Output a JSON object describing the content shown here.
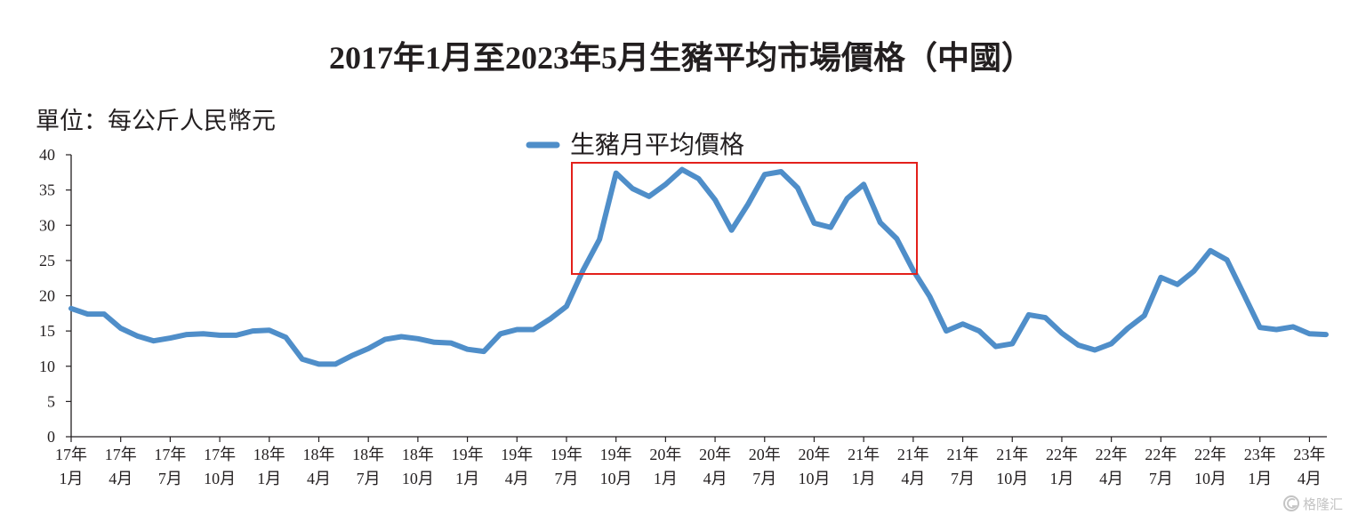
{
  "colors": {
    "line": "#4f8ec9",
    "highlight": "#e3201b"
  },
  "watermark": {
    "text": "格隆汇",
    "icon": "gelonghui-logo-icon"
  },
  "chart_data": {
    "type": "line",
    "title": "2017年1月至2023年5月生豬平均市場價格（中國）",
    "ylabel": "單位：每公斤人民幣元",
    "ylim": [
      0,
      40
    ],
    "yticks": [
      0,
      5,
      10,
      15,
      20,
      25,
      30,
      35,
      40
    ],
    "grid": false,
    "legend_placement": "top-center",
    "x": [
      "2017-01",
      "2017-02",
      "2017-03",
      "2017-04",
      "2017-05",
      "2017-06",
      "2017-07",
      "2017-08",
      "2017-09",
      "2017-10",
      "2017-11",
      "2017-12",
      "2018-01",
      "2018-02",
      "2018-03",
      "2018-04",
      "2018-05",
      "2018-06",
      "2018-07",
      "2018-08",
      "2018-09",
      "2018-10",
      "2018-11",
      "2018-12",
      "2019-01",
      "2019-02",
      "2019-03",
      "2019-04",
      "2019-05",
      "2019-06",
      "2019-07",
      "2019-08",
      "2019-09",
      "2019-10",
      "2019-11",
      "2019-12",
      "2020-01",
      "2020-02",
      "2020-03",
      "2020-04",
      "2020-05",
      "2020-06",
      "2020-07",
      "2020-08",
      "2020-09",
      "2020-10",
      "2020-11",
      "2020-12",
      "2021-01",
      "2021-02",
      "2021-03",
      "2021-04",
      "2021-05",
      "2021-06",
      "2021-07",
      "2021-08",
      "2021-09",
      "2021-10",
      "2021-11",
      "2021-12",
      "2022-01",
      "2022-02",
      "2022-03",
      "2022-04",
      "2022-05",
      "2022-06",
      "2022-07",
      "2022-08",
      "2022-09",
      "2022-10",
      "2022-11",
      "2022-12",
      "2023-01",
      "2023-02",
      "2023-03",
      "2023-04",
      "2023-05"
    ],
    "series": [
      {
        "name": "生豬月平均價格",
        "values": [
          18.2,
          17.4,
          17.4,
          15.4,
          14.3,
          13.6,
          14.0,
          14.5,
          14.6,
          14.4,
          14.4,
          15.0,
          15.1,
          14.1,
          11.0,
          10.3,
          10.3,
          11.5,
          12.5,
          13.8,
          14.2,
          13.9,
          13.4,
          13.3,
          12.4,
          12.1,
          14.6,
          15.2,
          15.2,
          16.7,
          18.5,
          23.6,
          28.0,
          37.4,
          35.2,
          34.1,
          35.8,
          37.9,
          36.6,
          33.6,
          29.3,
          33.0,
          37.2,
          37.6,
          35.3,
          30.3,
          29.7,
          33.8,
          35.8,
          30.4,
          28.1,
          23.6,
          19.9,
          15.0,
          16.0,
          15.0,
          12.8,
          13.2,
          17.3,
          16.9,
          14.7,
          13.0,
          12.3,
          13.2,
          15.4,
          17.2,
          22.6,
          21.6,
          23.5,
          26.4,
          25.1,
          20.3,
          15.5,
          15.2,
          15.6,
          14.6,
          14.5
        ]
      }
    ],
    "x_ticks": [
      {
        "x": "2017-01",
        "label": [
          "17年",
          "1月"
        ]
      },
      {
        "x": "2017-04",
        "label": [
          "17年",
          "4月"
        ]
      },
      {
        "x": "2017-07",
        "label": [
          "17年",
          "7月"
        ]
      },
      {
        "x": "2017-10",
        "label": [
          "17年",
          "10月"
        ]
      },
      {
        "x": "2018-01",
        "label": [
          "18年",
          "1月"
        ]
      },
      {
        "x": "2018-04",
        "label": [
          "18年",
          "4月"
        ]
      },
      {
        "x": "2018-07",
        "label": [
          "18年",
          "7月"
        ]
      },
      {
        "x": "2018-10",
        "label": [
          "18年",
          "10月"
        ]
      },
      {
        "x": "2019-01",
        "label": [
          "19年",
          "1月"
        ]
      },
      {
        "x": "2019-04",
        "label": [
          "19年",
          "4月"
        ]
      },
      {
        "x": "2019-07",
        "label": [
          "19年",
          "7月"
        ]
      },
      {
        "x": "2019-10",
        "label": [
          "19年",
          "10月"
        ]
      },
      {
        "x": "2020-01",
        "label": [
          "20年",
          "1月"
        ]
      },
      {
        "x": "2020-04",
        "label": [
          "20年",
          "4月"
        ]
      },
      {
        "x": "2020-07",
        "label": [
          "20年",
          "7月"
        ]
      },
      {
        "x": "2020-10",
        "label": [
          "20年",
          "10月"
        ]
      },
      {
        "x": "2021-01",
        "label": [
          "21年",
          "1月"
        ]
      },
      {
        "x": "2021-04",
        "label": [
          "21年",
          "4月"
        ]
      },
      {
        "x": "2021-07",
        "label": [
          "21年",
          "7月"
        ]
      },
      {
        "x": "2021-10",
        "label": [
          "21年",
          "10月"
        ]
      },
      {
        "x": "2022-01",
        "label": [
          "22年",
          "1月"
        ]
      },
      {
        "x": "2022-04",
        "label": [
          "22年",
          "4月"
        ]
      },
      {
        "x": "2022-07",
        "label": [
          "22年",
          "7月"
        ]
      },
      {
        "x": "2022-10",
        "label": [
          "22年",
          "10月"
        ]
      },
      {
        "x": "2023-01",
        "label": [
          "23年",
          "1月"
        ]
      },
      {
        "x": "2023-04",
        "label": [
          "23年",
          "4月"
        ]
      }
    ]
  }
}
